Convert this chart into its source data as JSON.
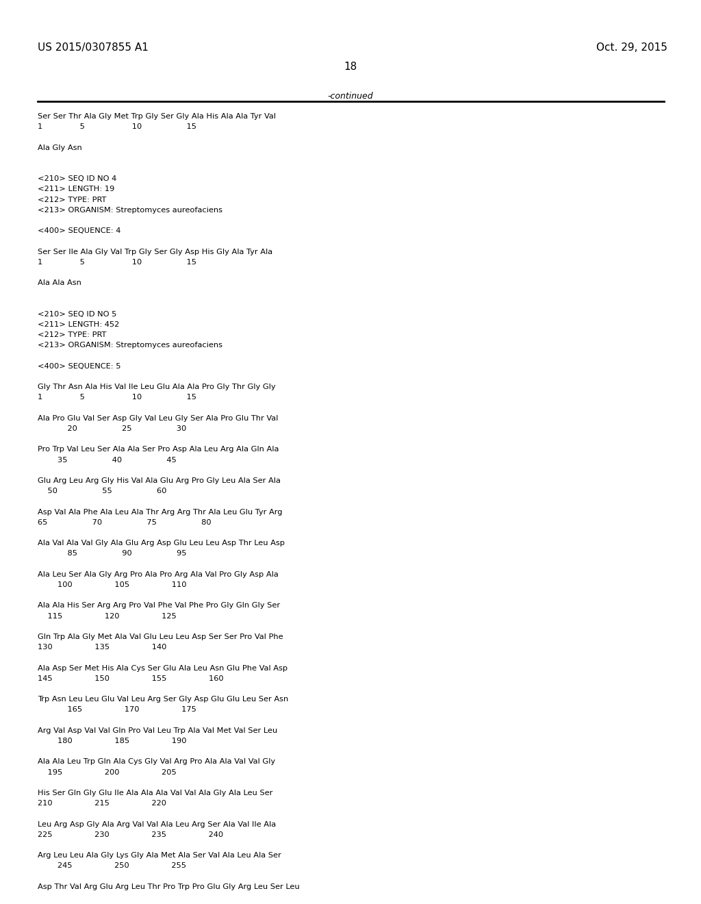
{
  "header_left": "US 2015/0307855 A1",
  "header_right": "Oct. 29, 2015",
  "page_number": "18",
  "continued_text": "-continued",
  "background_color": "#ffffff",
  "text_color": "#000000",
  "lines": [
    "Ser Ser Thr Ala Gly Met Trp Gly Ser Gly Ala His Ala Ala Tyr Val",
    "1               5                   10                  15",
    "",
    "Ala Gly Asn",
    "",
    "",
    "<210> SEQ ID NO 4",
    "<211> LENGTH: 19",
    "<212> TYPE: PRT",
    "<213> ORGANISM: Streptomyces aureofaciens",
    "",
    "<400> SEQUENCE: 4",
    "",
    "Ser Ser Ile Ala Gly Val Trp Gly Ser Gly Asp His Gly Ala Tyr Ala",
    "1               5                   10                  15",
    "",
    "Ala Ala Asn",
    "",
    "",
    "<210> SEQ ID NO 5",
    "<211> LENGTH: 452",
    "<212> TYPE: PRT",
    "<213> ORGANISM: Streptomyces aureofaciens",
    "",
    "<400> SEQUENCE: 5",
    "",
    "Gly Thr Asn Ala His Val Ile Leu Glu Ala Ala Pro Gly Thr Gly Gly",
    "1               5                   10                  15",
    "",
    "Ala Pro Glu Val Ser Asp Gly Val Leu Gly Ser Ala Pro Glu Thr Val",
    "            20                  25                  30",
    "",
    "Pro Trp Val Leu Ser Ala Ala Ser Pro Asp Ala Leu Arg Ala Gln Ala",
    "        35                  40                  45",
    "",
    "Glu Arg Leu Arg Gly His Val Ala Glu Arg Pro Gly Leu Ala Ser Ala",
    "    50                  55                  60",
    "",
    "Asp Val Ala Phe Ala Leu Ala Thr Arg Arg Thr Ala Leu Glu Tyr Arg",
    "65                  70                  75                  80",
    "",
    "Ala Val Ala Val Gly Ala Glu Arg Asp Glu Leu Leu Asp Thr Leu Asp",
    "            85                  90                  95",
    "",
    "Ala Leu Ser Ala Gly Arg Pro Ala Pro Arg Ala Val Pro Gly Asp Ala",
    "        100                 105                 110",
    "",
    "Ala Ala His Ser Arg Arg Pro Val Phe Val Phe Pro Gly Gln Gly Ser",
    "    115                 120                 125",
    "",
    "Gln Trp Ala Gly Met Ala Val Glu Leu Leu Asp Ser Ser Pro Val Phe",
    "130                 135                 140",
    "",
    "Ala Asp Ser Met His Ala Cys Ser Glu Ala Leu Asn Glu Phe Val Asp",
    "145                 150                 155                 160",
    "",
    "Trp Asn Leu Leu Glu Val Leu Arg Ser Gly Asp Glu Glu Leu Ser Asn",
    "            165                 170                 175",
    "",
    "Arg Val Asp Val Val Gln Pro Val Leu Trp Ala Val Met Val Ser Leu",
    "        180                 185                 190",
    "",
    "Ala Ala Leu Trp Gln Ala Cys Gly Val Arg Pro Ala Ala Val Val Gly",
    "    195                 200                 205",
    "",
    "His Ser Gln Gly Glu Ile Ala Ala Ala Val Val Ala Gly Ala Leu Ser",
    "210                 215                 220",
    "",
    "Leu Arg Asp Gly Ala Arg Val Val Ala Leu Arg Ser Ala Val Ile Ala",
    "225                 230                 235                 240",
    "",
    "Arg Leu Leu Ala Gly Lys Gly Ala Met Ala Ser Val Ala Leu Ala Ser",
    "        245                 250                 255",
    "",
    "Asp Thr Val Arg Glu Arg Leu Thr Pro Trp Pro Glu Gly Arg Leu Ser Leu"
  ]
}
